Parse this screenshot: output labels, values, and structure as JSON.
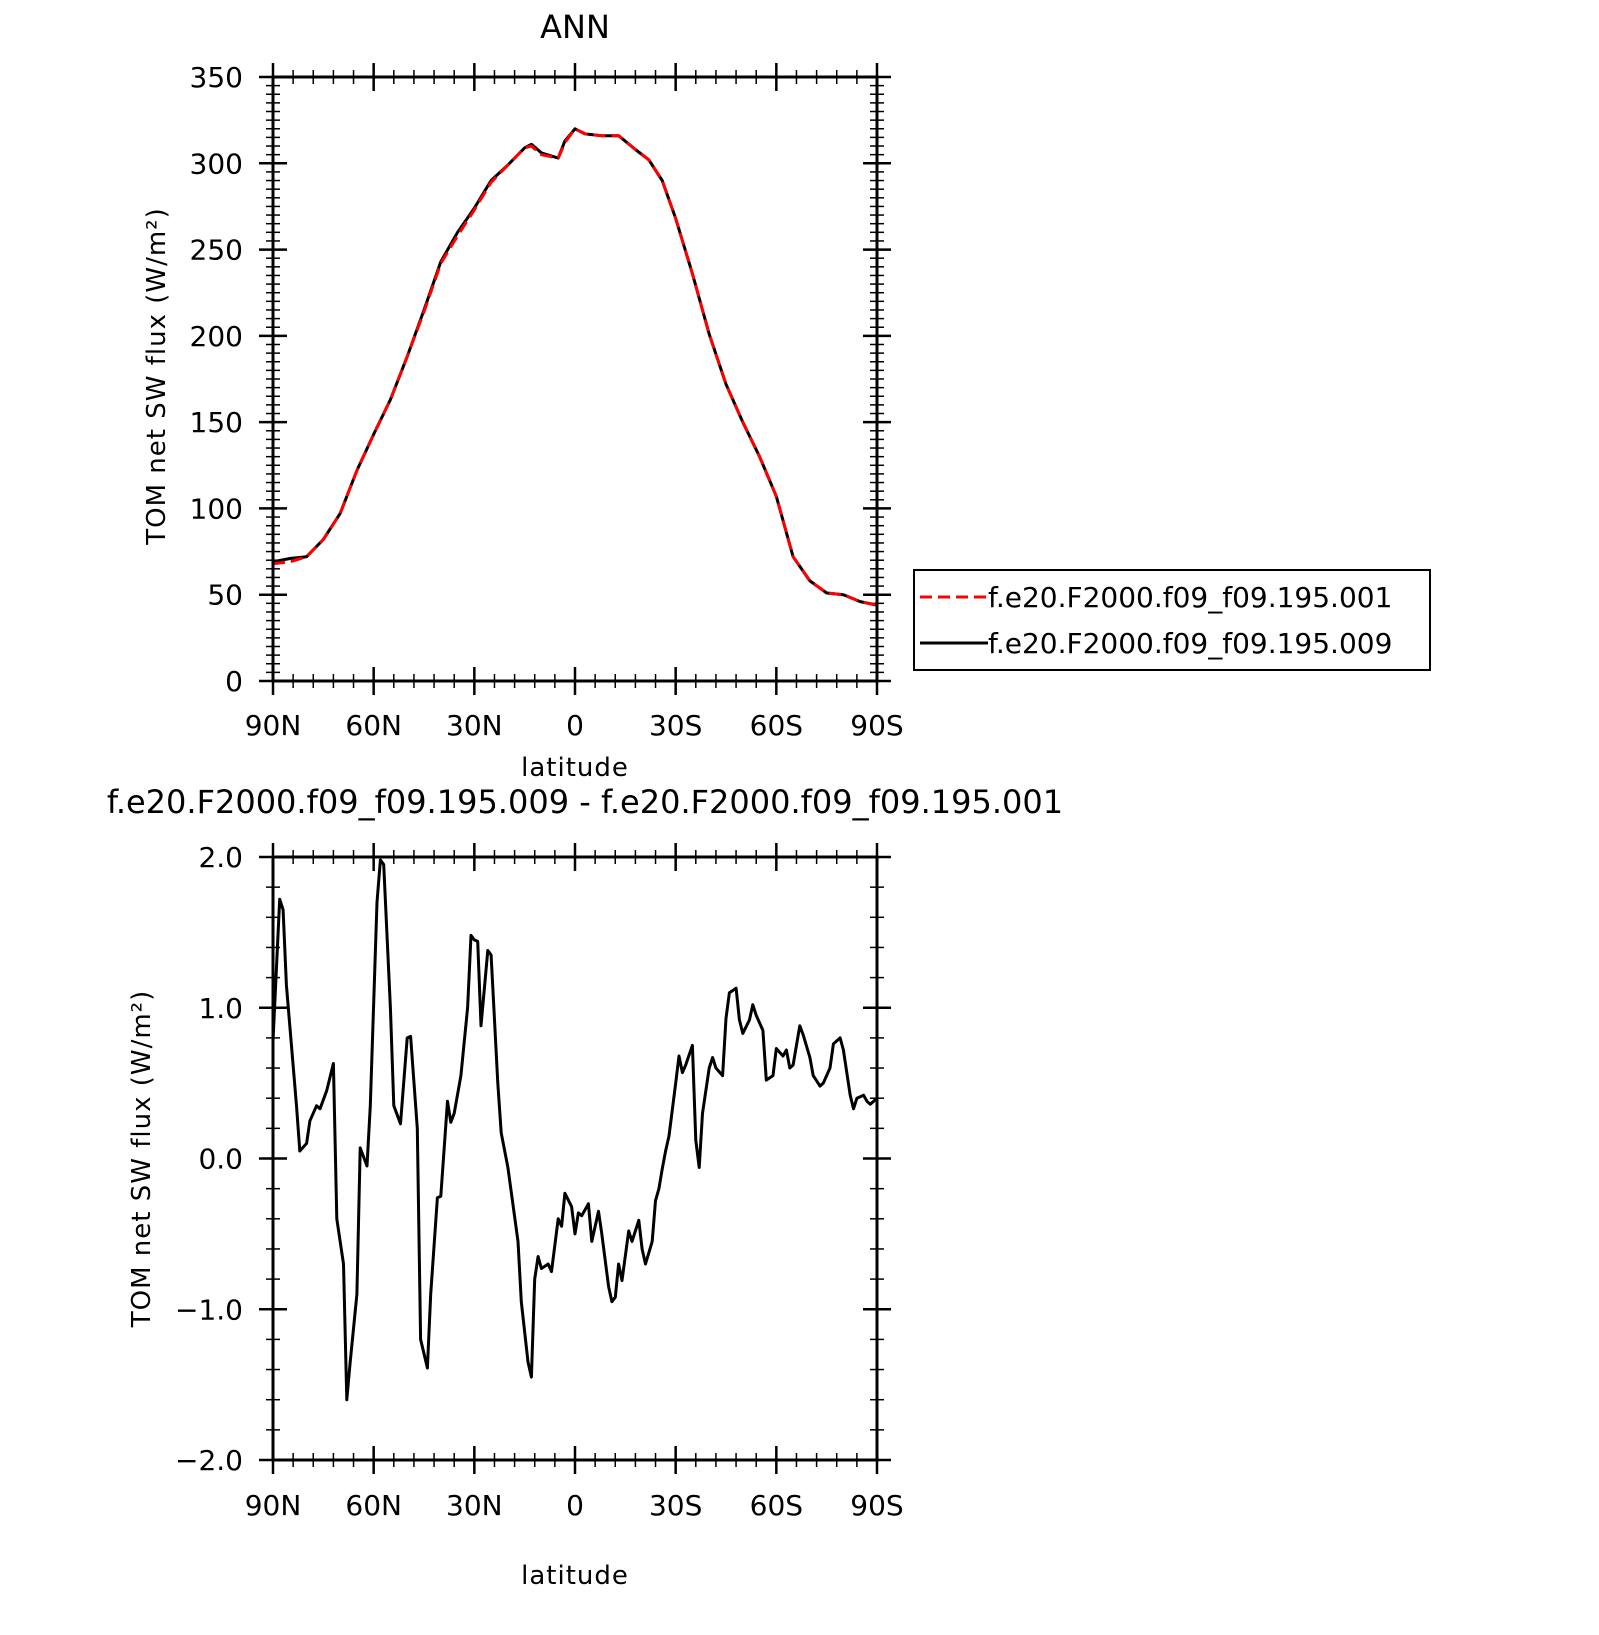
{
  "chart_data": [
    {
      "type": "line",
      "title": "ANN",
      "xlabel": "latitude",
      "ylabel": "TOM net SW flux (W/m²)",
      "ylim": [
        0,
        350
      ],
      "yticks": [
        0,
        50,
        100,
        150,
        200,
        250,
        300,
        350
      ],
      "xlim": [
        90,
        -90
      ],
      "xticks": [
        90,
        60,
        30,
        0,
        -30,
        -60,
        -90
      ],
      "xticklabels": [
        "90N",
        "60N",
        "30N",
        "0",
        "30S",
        "60S",
        "90S"
      ],
      "legend": "right",
      "x": [
        90,
        85,
        80,
        75,
        70,
        65,
        60,
        55,
        50,
        45,
        40,
        35,
        30,
        25,
        20,
        15,
        13,
        10,
        5,
        3,
        0,
        -3,
        -8,
        -13,
        -18,
        -22,
        -26,
        -30,
        -35,
        -40,
        -45,
        -50,
        -55,
        -60,
        -65,
        -70,
        -75,
        -80,
        -85,
        -90
      ],
      "series": [
        {
          "name": "f.e20.F2000.f09_f09.195.001",
          "color": "#ff0000",
          "dash": "dashed",
          "values": [
            68,
            69,
            72,
            82,
            97,
            122,
            143,
            163,
            188,
            214,
            242,
            258,
            273,
            289,
            299,
            309,
            310,
            305,
            303,
            312,
            320,
            317,
            316,
            316,
            308,
            302,
            290,
            268,
            236,
            201,
            172,
            150,
            130,
            107,
            72,
            58,
            51,
            50,
            46,
            44
          ]
        },
        {
          "name": "f.e20.F2000.f09_f09.195.009",
          "color": "#000000",
          "dash": "solid",
          "values": [
            69,
            71,
            72,
            82,
            97,
            122,
            143,
            163,
            188,
            215,
            243,
            260,
            274,
            290,
            299,
            309,
            311,
            306,
            303,
            313,
            320,
            317,
            316,
            316,
            308,
            302,
            290,
            268,
            236,
            201,
            172,
            150,
            130,
            107,
            72,
            58,
            51,
            50,
            46,
            44
          ]
        }
      ]
    },
    {
      "type": "line",
      "title": "f.e20.F2000.f09_f09.195.009 - f.e20.F2000.f09_f09.195.001",
      "xlabel": "latitude",
      "ylabel": "TOM net SW flux (W/m²)",
      "ylim": [
        -2.0,
        2.0
      ],
      "yticks": [
        -2.0,
        -1.0,
        0.0,
        1.0,
        2.0
      ],
      "yticklabels": [
        "−2.0",
        "−1.0",
        "0.0",
        "1.0",
        "2.0"
      ],
      "xlim": [
        90,
        -90
      ],
      "xticks": [
        90,
        60,
        30,
        0,
        -30,
        -60,
        -90
      ],
      "xticklabels": [
        "90N",
        "60N",
        "30N",
        "0",
        "30S",
        "60S",
        "90S"
      ],
      "x": [
        90,
        88,
        87,
        86,
        83,
        82,
        80,
        79,
        77,
        76,
        74,
        72,
        71,
        69,
        68,
        67,
        65,
        64,
        62,
        61,
        59,
        58,
        57,
        55,
        54,
        52,
        50,
        49,
        47,
        46,
        44,
        43,
        41,
        40,
        38,
        37,
        36,
        34,
        32,
        31,
        30,
        29,
        28,
        26,
        25,
        23,
        22,
        20,
        19,
        17,
        16,
        14,
        13,
        12,
        11,
        10,
        8,
        7,
        5,
        4,
        3,
        1,
        0,
        -1,
        -2,
        -4,
        -5,
        -7,
        -8,
        -10,
        -11,
        -12,
        -13,
        -14,
        -16,
        -17,
        -19,
        -20,
        -21,
        -23,
        -24,
        -25,
        -26,
        -27,
        -28,
        -30,
        -31,
        -32,
        -33,
        -35,
        -36,
        -37,
        -38,
        -40,
        -41,
        -42,
        -44,
        -45,
        -46,
        -48,
        -49,
        -50,
        -52,
        -53,
        -54,
        -56,
        -57,
        -59,
        -60,
        -62,
        -63,
        -64,
        -65,
        -67,
        -68,
        -70,
        -71,
        -73,
        -74,
        -76,
        -77,
        -79,
        -80,
        -82,
        -83,
        -84,
        -86,
        -87,
        -88,
        -90
      ],
      "series": [
        {
          "name": "",
          "color": "#000000",
          "dash": "solid",
          "values": [
            0.78,
            1.72,
            1.65,
            1.15,
            0.35,
            0.05,
            0.1,
            0.25,
            0.35,
            0.33,
            0.45,
            0.63,
            -0.4,
            -0.7,
            -1.6,
            -1.35,
            -0.9,
            0.07,
            -0.05,
            0.35,
            1.7,
            1.98,
            1.95,
            1.0,
            0.35,
            0.23,
            0.8,
            0.81,
            0.2,
            -1.2,
            -1.39,
            -0.9,
            -0.26,
            -0.25,
            0.38,
            0.24,
            0.3,
            0.55,
            1.0,
            1.48,
            1.45,
            1.44,
            0.88,
            1.38,
            1.35,
            0.5,
            0.17,
            -0.06,
            -0.22,
            -0.55,
            -0.95,
            -1.35,
            -1.45,
            -0.8,
            -0.65,
            -0.73,
            -0.7,
            -0.75,
            -0.4,
            -0.45,
            -0.23,
            -0.32,
            -0.5,
            -0.36,
            -0.38,
            -0.3,
            -0.55,
            -0.35,
            -0.5,
            -0.85,
            -0.95,
            -0.92,
            -0.7,
            -0.81,
            -0.48,
            -0.55,
            -0.41,
            -0.6,
            -0.7,
            -0.55,
            -0.28,
            -0.2,
            -0.07,
            0.05,
            0.15,
            0.5,
            0.68,
            0.57,
            0.62,
            0.75,
            0.12,
            -0.06,
            0.3,
            0.6,
            0.67,
            0.6,
            0.55,
            0.93,
            1.1,
            1.13,
            0.92,
            0.83,
            0.92,
            1.02,
            0.95,
            0.85,
            0.52,
            0.55,
            0.73,
            0.68,
            0.72,
            0.6,
            0.62,
            0.88,
            0.82,
            0.67,
            0.55,
            0.48,
            0.5,
            0.6,
            0.76,
            0.8,
            0.72,
            0.42,
            0.33,
            0.4,
            0.42,
            0.38,
            0.36,
            0.4
          ]
        }
      ]
    }
  ]
}
